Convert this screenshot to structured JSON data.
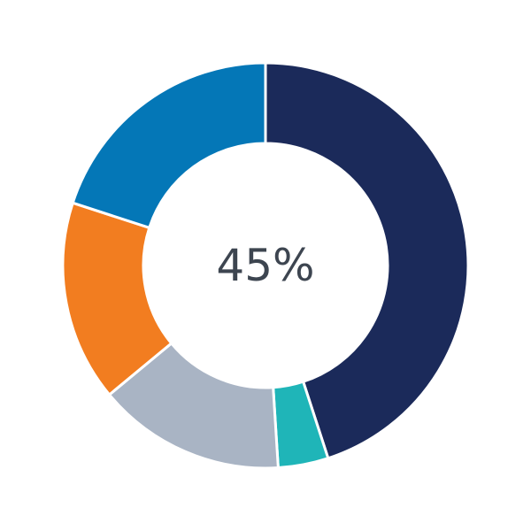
{
  "chart_data": {
    "type": "pie",
    "variant": "donut",
    "center_label": "45%",
    "slices": [
      {
        "value": 45,
        "color": "#1b2a5a"
      },
      {
        "value": 4,
        "color": "#1fb5b8"
      },
      {
        "value": 15,
        "color": "#a9b4c4"
      },
      {
        "value": 16,
        "color": "#f27d20"
      },
      {
        "value": 20,
        "color": "#0477b7"
      }
    ],
    "start_angle": "12 o'clock",
    "direction": "clockwise",
    "legend": "none"
  }
}
